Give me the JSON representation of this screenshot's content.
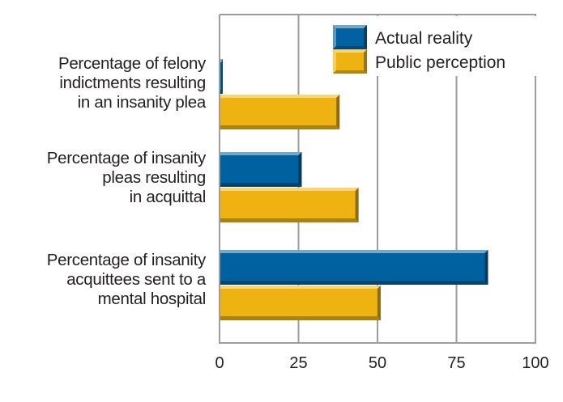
{
  "chart_data": {
    "type": "bar",
    "orientation": "horizontal",
    "title": "",
    "xlabel": "",
    "ylabel": "",
    "categories": [
      "Percentage of felony\nindictments resulting\nin an insanity plea",
      "Percentage of insanity\npleas resulting\nin acquittal",
      "Percentage of insanity\nacquittees sent to a\nmental hospital"
    ],
    "series": [
      {
        "name": "Actual reality",
        "color": "#0061a0",
        "values": [
          1,
          26,
          85
        ]
      },
      {
        "name": "Public perception",
        "color": "#efb311",
        "values": [
          38,
          44,
          51
        ]
      }
    ],
    "xlim": [
      0,
      100
    ],
    "xticks": [
      "0",
      "25",
      "50",
      "75",
      "100"
    ],
    "grid": true,
    "legend_position": "top-right"
  }
}
